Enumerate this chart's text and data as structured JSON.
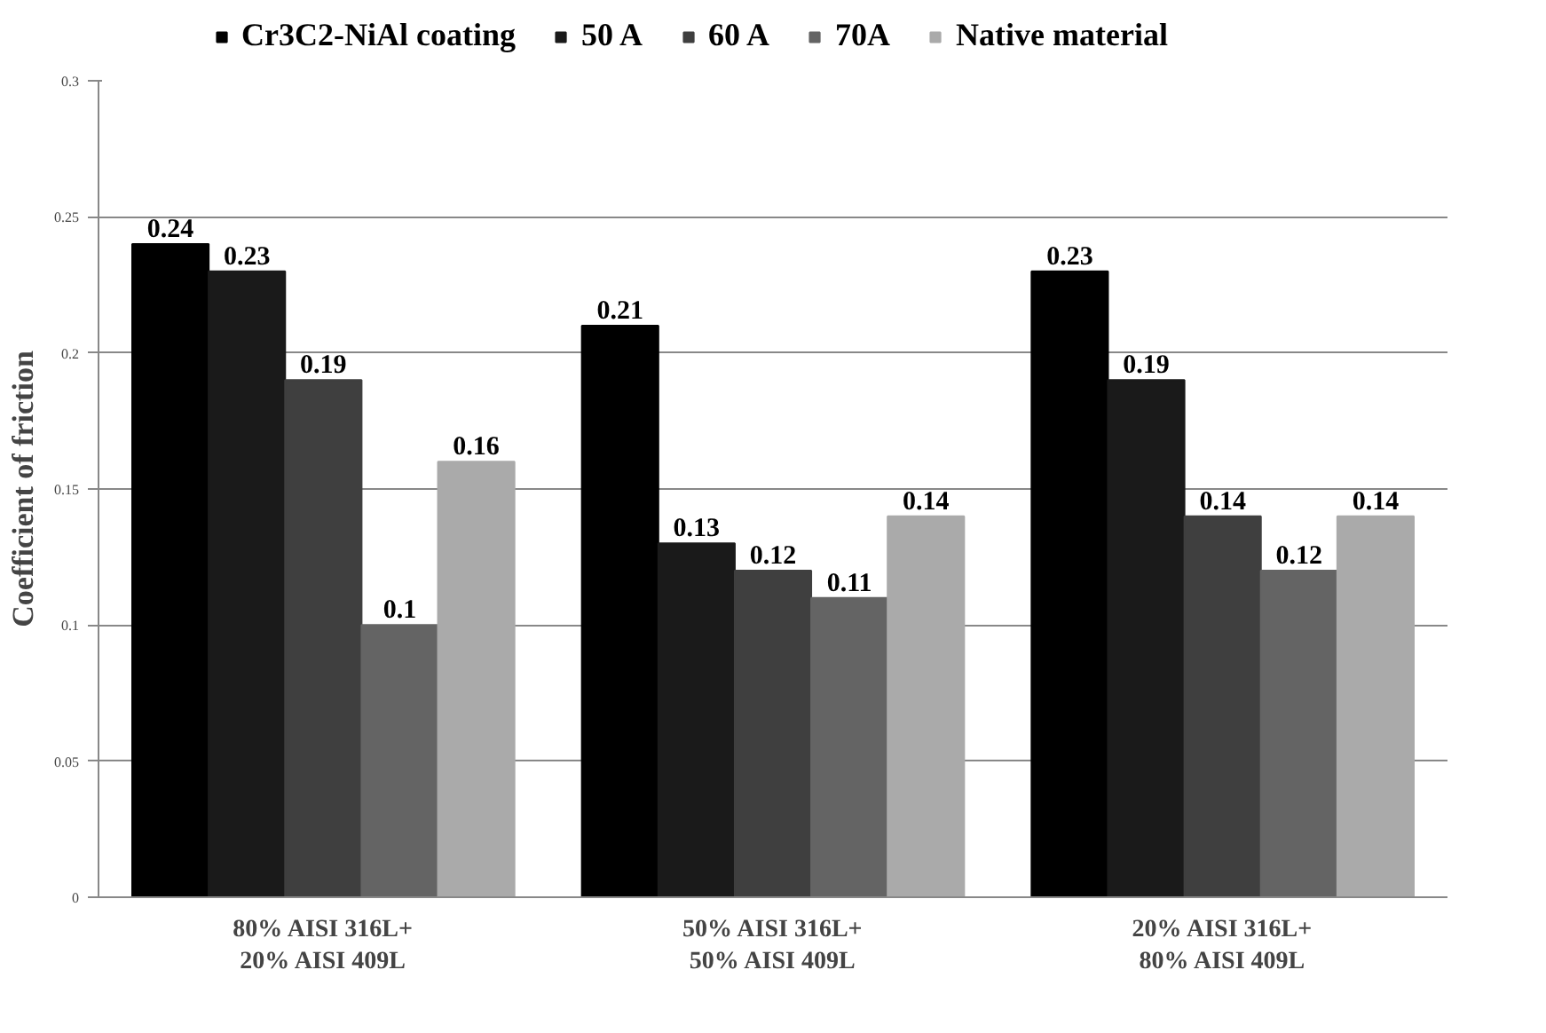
{
  "chart_data": {
    "type": "bar",
    "ylabel": "Coefficient of friction",
    "categories": [
      "80% AISI 316L+\n20% AISI 409L",
      "50% AISI 316L+\n50% AISI 409L",
      "20% AISI 316L+\n80% AISI 409L"
    ],
    "series": [
      {
        "name": "Cr3C2-NiAl coating",
        "color": "#000000",
        "values": [
          0.24,
          0.21,
          0.23
        ]
      },
      {
        "name": "50 A",
        "color": "#1a1a1a",
        "values": [
          0.23,
          0.13,
          0.19
        ]
      },
      {
        "name": "60 A",
        "color": "#3f3f3f",
        "values": [
          0.19,
          0.12,
          0.14
        ]
      },
      {
        "name": "70A",
        "color": "#646464",
        "values": [
          0.1,
          0.11,
          0.12
        ]
      },
      {
        "name": "Native material",
        "color": "#aaaaaa",
        "values": [
          0.16,
          0.14,
          0.14
        ]
      }
    ],
    "ylim": [
      0,
      0.3
    ],
    "yticks": [
      0,
      0.05,
      0.1,
      0.15,
      0.2,
      0.25,
      0.3
    ],
    "grid": "y",
    "legend": "top",
    "data_labels": true
  }
}
